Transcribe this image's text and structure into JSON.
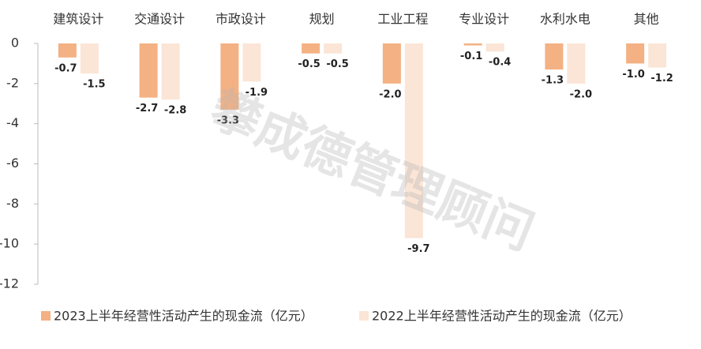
{
  "chart_data": {
    "type": "bar",
    "watermark": "攀成德管理顾问",
    "categories": [
      "建筑设计",
      "交通设计",
      "市政设计",
      "规划",
      "工业工程",
      "专业设计",
      "水利水电",
      "其他"
    ],
    "series": [
      {
        "name": "2023上半年经营性活动产生的现金流（亿元）",
        "color": "#F4B183",
        "values": [
          -0.7,
          -2.7,
          -3.3,
          -0.5,
          -2.0,
          -0.1,
          -1.3,
          -1.0
        ],
        "value_labels": [
          "-0.7",
          "-2.7",
          "-3.3",
          "-0.5",
          "-2.0",
          "-0.1",
          "-1.3",
          "-1.0"
        ]
      },
      {
        "name": "2022上半年经营性活动产生的现金流（亿元）",
        "color": "#FBE5D6",
        "values": [
          -1.5,
          -2.8,
          -1.9,
          -0.5,
          -9.7,
          -0.4,
          -2.0,
          -1.2
        ],
        "value_labels": [
          "-1.5",
          "-2.8",
          "-1.9",
          "-0.5",
          "-9.7",
          "-0.4",
          "-2.0",
          "-1.2"
        ]
      }
    ],
    "ylim": [
      -12,
      0
    ],
    "yticks": [
      0,
      -2,
      -4,
      -6,
      -8,
      -10,
      -12
    ],
    "legend": "bottom"
  }
}
